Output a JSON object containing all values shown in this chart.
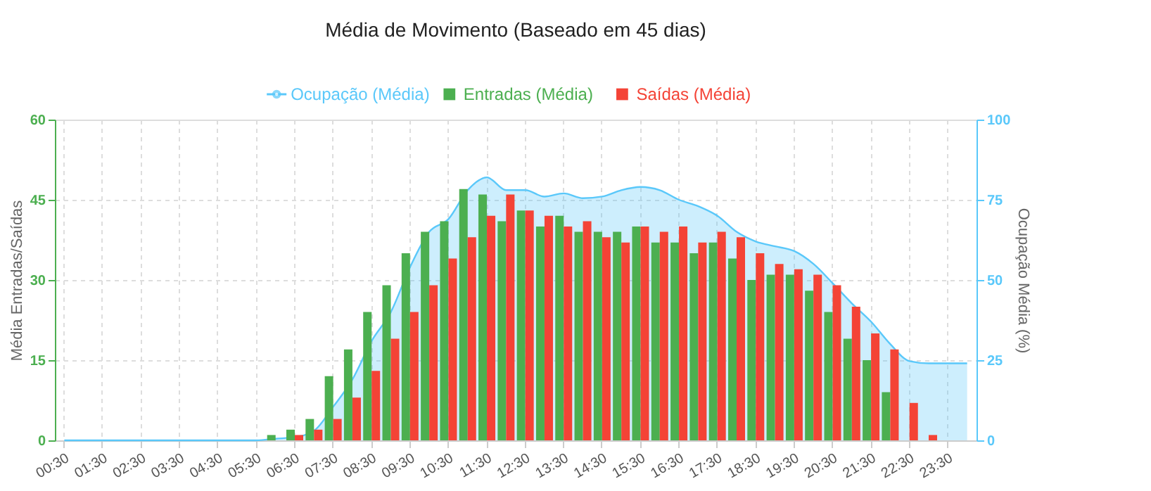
{
  "chart_data": {
    "type": "bar",
    "title": "Média de Movimento (Baseado em 45 dias)",
    "ylabel": "Média Entradas/Saídas",
    "y2label": "Ocupação Média (%)",
    "categories": [
      "00:30",
      null,
      "01:30",
      null,
      "02:30",
      null,
      "03:30",
      null,
      "04:30",
      null,
      "05:30",
      null,
      "06:30",
      null,
      "07:30",
      null,
      "08:30",
      null,
      "09:30",
      null,
      "10:30",
      null,
      "11:30",
      null,
      "12:30",
      null,
      "13:30",
      null,
      "14:30",
      null,
      "15:30",
      null,
      "16:30",
      null,
      "17:30",
      null,
      "18:30",
      null,
      "19:30",
      null,
      "20:30",
      null,
      "21:30",
      null,
      "22:30",
      null,
      "23:30",
      null
    ],
    "series": [
      {
        "name": "Ocupação (Média)",
        "type": "area",
        "axis": "y2",
        "color": "#5ac8fa",
        "values": [
          0,
          0,
          0,
          0,
          0,
          0,
          0,
          0,
          0,
          0,
          0,
          0.5,
          1,
          3,
          10.5,
          19,
          31,
          40,
          54,
          65,
          69,
          78,
          82,
          78,
          78,
          76,
          77,
          75.5,
          76,
          78,
          79,
          78,
          75,
          73,
          70,
          65,
          62,
          60.5,
          59,
          55,
          49,
          42.7,
          37,
          30,
          24.7,
          24,
          24,
          24
        ]
      },
      {
        "name": "Entradas (Média)",
        "color": "#4caf50",
        "values": [
          0,
          0,
          0,
          0,
          0,
          0,
          0,
          0,
          0,
          0,
          0,
          1,
          2,
          4,
          12,
          17,
          24,
          29,
          35,
          39,
          41,
          47,
          46,
          41,
          43,
          40,
          42,
          39,
          39,
          39,
          40,
          37,
          37,
          35,
          37,
          34,
          30,
          31,
          31,
          28,
          24,
          19,
          15,
          9,
          0,
          0,
          0,
          0
        ]
      },
      {
        "name": "Saídas (Média)",
        "color": "#f44336",
        "values": [
          0,
          0,
          0,
          0,
          0,
          0,
          0,
          0,
          0,
          0,
          0,
          0,
          1,
          2,
          4,
          8,
          13,
          19,
          24,
          29,
          34,
          38,
          42,
          46,
          43,
          42,
          40,
          41,
          38,
          37,
          40,
          39,
          40,
          37,
          39,
          38,
          35,
          33,
          32,
          31,
          29,
          25,
          20,
          17,
          7,
          1,
          0,
          0
        ]
      }
    ],
    "ylim": [
      0,
      60
    ],
    "yticks": [
      0,
      15,
      30,
      45,
      60
    ],
    "y2lim": [
      0,
      100
    ],
    "y2ticks": [
      0,
      25,
      50,
      75,
      100
    ],
    "grid": true,
    "legend": "top",
    "line_style": "solid"
  }
}
